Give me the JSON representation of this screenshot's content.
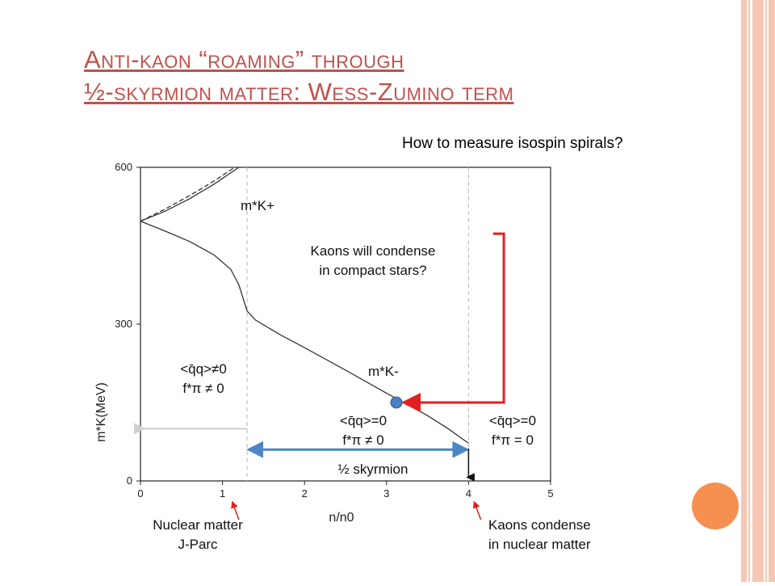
{
  "slide": {
    "title_line1": "Anti-kaon “roaming” through",
    "title_line2": "½-skyrmion matter: Wess-Zumino term",
    "subtitle": "How to measure isospin spirals?"
  },
  "colors": {
    "title": "#c0504d",
    "accent_orange": "#f68f4f",
    "border_pink": "#f6c7b4",
    "arrow_red": "#e02020",
    "arrow_blue": "#4a86c8",
    "marker_blue": "#4a7fc1"
  },
  "chart_data": {
    "type": "line",
    "xlabel": "n/n0",
    "ylabel": "m*K(MeV)",
    "xlim": [
      0,
      5
    ],
    "ylim": [
      0,
      600
    ],
    "xticks": [
      "0",
      "1",
      "2",
      "3",
      "4",
      "5"
    ],
    "yticks": [
      "0",
      "300",
      "600"
    ],
    "grid": false,
    "series": [
      {
        "name": "m*K+",
        "style": "solid",
        "points": [
          [
            0,
            497
          ],
          [
            0.3,
            516
          ],
          [
            0.6,
            540
          ],
          [
            0.9,
            568
          ],
          [
            1.2,
            600
          ]
        ]
      },
      {
        "name": "m*K+",
        "style": "dashed",
        "points": [
          [
            0,
            497
          ],
          [
            0.3,
            520
          ],
          [
            0.6,
            546
          ],
          [
            0.9,
            574
          ],
          [
            1.15,
            600
          ]
        ]
      },
      {
        "name": "m*K-",
        "style": "solid",
        "points": [
          [
            0,
            497
          ],
          [
            0.3,
            478
          ],
          [
            0.6,
            458
          ],
          [
            0.9,
            432
          ],
          [
            1.1,
            405
          ],
          [
            1.2,
            375
          ],
          [
            1.25,
            350
          ],
          [
            1.3,
            325
          ],
          [
            1.4,
            308
          ],
          [
            1.7,
            280
          ],
          [
            2.0,
            255
          ],
          [
            2.5,
            212
          ],
          [
            3.0,
            168
          ],
          [
            3.5,
            125
          ],
          [
            3.75,
            100
          ],
          [
            4.0,
            72
          ]
        ]
      }
    ],
    "vertical_lines": [
      1.3,
      4.0
    ],
    "marker": {
      "x": 3.12,
      "y": 150
    },
    "labels": {
      "m_kplus": "m*K+",
      "m_kminus": "m*K-",
      "condense_question": [
        "Kaons will condense",
        "in compact stars?"
      ],
      "region_left": [
        "<q̄q>≠0",
        "f*π ≠ 0"
      ],
      "region_mid": [
        "<q̄q>=0",
        "f*π ≠ 0"
      ],
      "region_right": [
        "<q̄q>=0",
        "f*π = 0"
      ],
      "skyrmion": "½ skyrmion",
      "nuclear_matter": [
        "Nuclear matter",
        "J-Parc"
      ],
      "kaons_condense": [
        "Kaons condense",
        "in nuclear matter"
      ]
    }
  }
}
